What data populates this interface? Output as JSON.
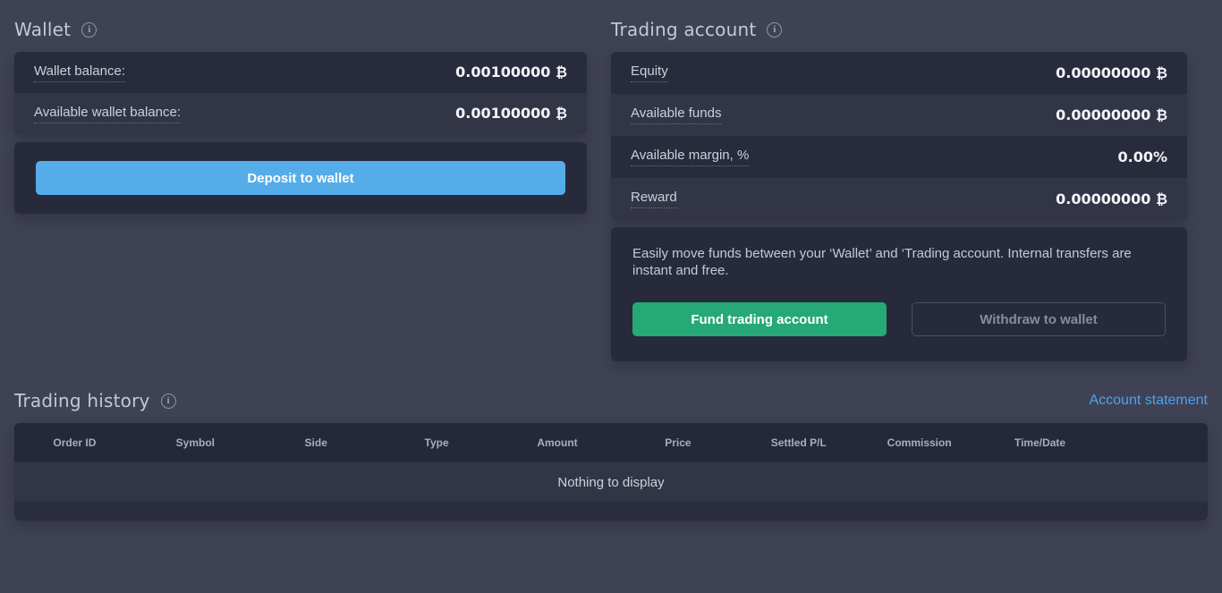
{
  "icons": {
    "info_glyph": "i"
  },
  "colors": {
    "page_bg": "#3f4254",
    "row_dark": "#282b3c",
    "row_light": "#323546",
    "panel_bg": "#272a3b",
    "table_header_bg": "#252839",
    "accent_blue": "#54ade9",
    "accent_green": "#27a877",
    "link_blue": "#4aa3f2"
  },
  "wallet": {
    "title": "Wallet",
    "rows": [
      {
        "label": "Wallet balance:",
        "value": "0.00100000 ₿"
      },
      {
        "label": "Available wallet balance:",
        "value": "0.00100000 ₿"
      }
    ],
    "deposit_button": "Deposit to wallet"
  },
  "trading_account": {
    "title": "Trading account",
    "rows": [
      {
        "label": "Equity",
        "value": "0.00000000 ₿"
      },
      {
        "label": "Available funds",
        "value": "0.00000000 ₿"
      },
      {
        "label": "Available margin, %",
        "value": "0.00%"
      },
      {
        "label": "Reward",
        "value": "0.00000000 ₿"
      }
    ],
    "description": "Easily move funds between your ‘Wallet’ and ‘Trading account. Internal transfers are instant and free.",
    "fund_button": "Fund trading account",
    "withdraw_button": "Withdraw to wallet"
  },
  "trading_history": {
    "title": "Trading history",
    "statement_link": "Account statement",
    "columns": [
      "Order ID",
      "Symbol",
      "Side",
      "Type",
      "Amount",
      "Price",
      "Settled P/L",
      "Commission",
      "Time/Date"
    ],
    "empty_message": "Nothing to display"
  }
}
